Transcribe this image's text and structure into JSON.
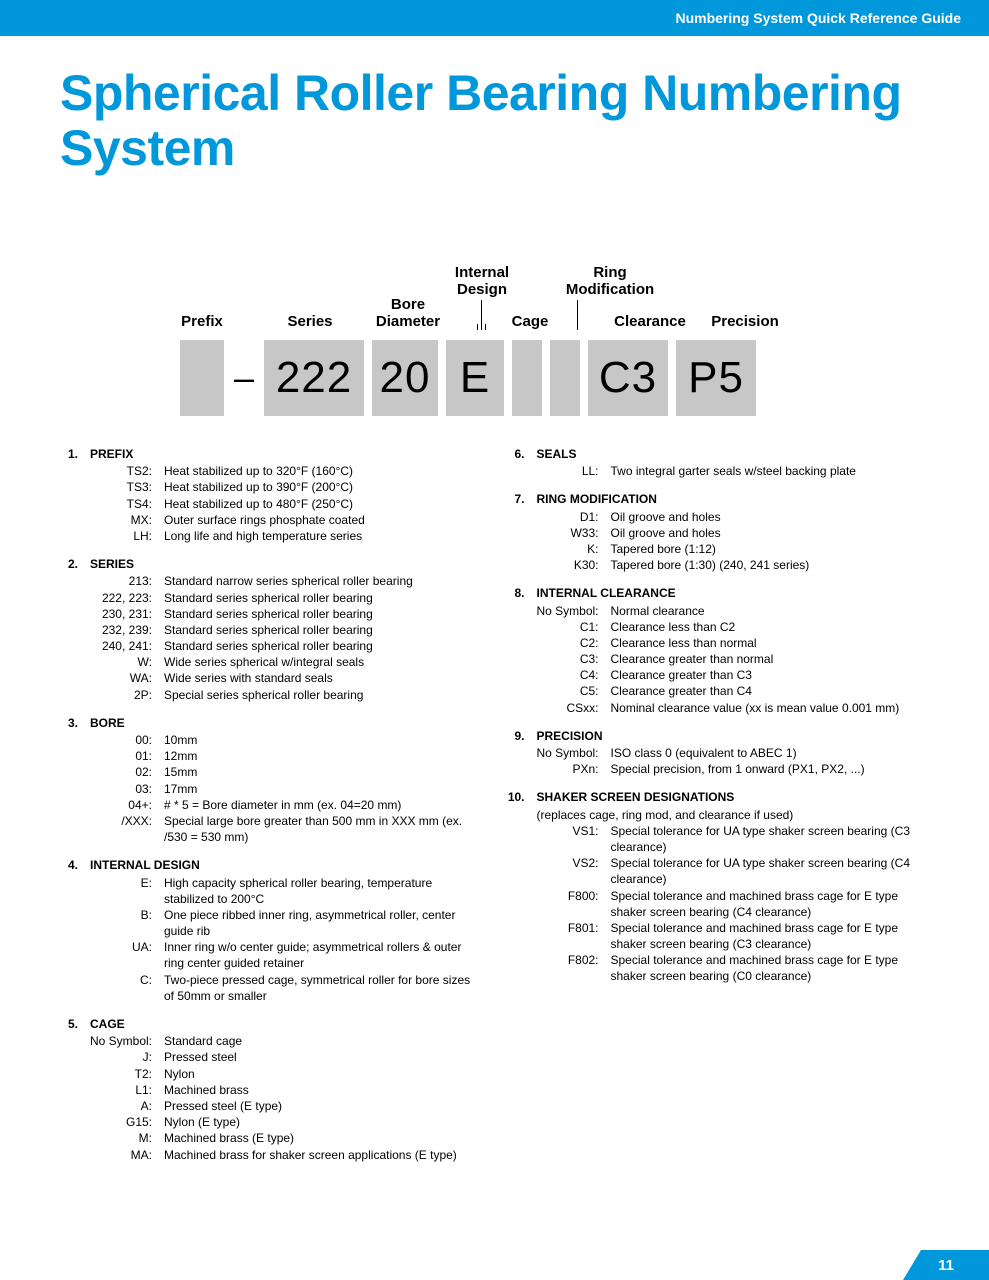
{
  "header": {
    "guide_title": "Numbering System Quick Reference Guide"
  },
  "title": "Spherical Roller Bearing Numbering System",
  "diagram": {
    "labels": {
      "prefix": "Prefix",
      "series": "Series",
      "bore": "Bore Diameter",
      "internal": "Internal Design",
      "cage": "Cage",
      "ringmod": "Ring Modification",
      "clearance": "Clearance",
      "precision": "Precision"
    },
    "boxes": {
      "dash": "–",
      "b222": "222",
      "b20": "20",
      "bE": "E",
      "bC3": "C3",
      "bP5": "P5"
    }
  },
  "left": [
    {
      "num": "1.",
      "title": "PREFIX",
      "items": [
        {
          "code": "TS2:",
          "desc": "Heat stabilized up to 320°F (160°C)"
        },
        {
          "code": "TS3:",
          "desc": "Heat stabilized up to 390°F (200°C)"
        },
        {
          "code": "TS4:",
          "desc": "Heat stabilized up to 480°F (250°C)"
        },
        {
          "code": "MX:",
          "desc": "Outer surface rings phosphate coated"
        },
        {
          "code": "LH:",
          "desc": "Long life and high temperature series"
        }
      ]
    },
    {
      "num": "2.",
      "title": "SERIES",
      "items": [
        {
          "code": "213:",
          "desc": "Standard narrow series spherical roller bearing"
        },
        {
          "code": "222, 223:",
          "desc": "Standard series spherical roller bearing"
        },
        {
          "code": "230, 231:",
          "desc": "Standard series spherical roller bearing"
        },
        {
          "code": "232, 239:",
          "desc": "Standard series spherical roller bearing"
        },
        {
          "code": "240, 241:",
          "desc": "Standard series spherical roller bearing"
        },
        {
          "code": "W:",
          "desc": "Wide series spherical w/integral seals"
        },
        {
          "code": "WA:",
          "desc": "Wide series with standard seals"
        },
        {
          "code": "2P:",
          "desc": "Special series spherical roller bearing"
        }
      ]
    },
    {
      "num": "3.",
      "title": "BORE",
      "items": [
        {
          "code": "00:",
          "desc": "10mm"
        },
        {
          "code": "01:",
          "desc": "12mm"
        },
        {
          "code": "02:",
          "desc": "15mm"
        },
        {
          "code": "03:",
          "desc": "17mm"
        },
        {
          "code": "04+:",
          "desc": "# * 5 = Bore diameter in mm (ex. 04=20 mm)"
        },
        {
          "code": "/XXX:",
          "desc": "Special large bore greater than 500 mm in XXX mm (ex. /530 = 530 mm)"
        }
      ]
    },
    {
      "num": "4.",
      "title": "INTERNAL DESIGN",
      "items": [
        {
          "code": "E:",
          "desc": "High capacity spherical roller bearing, temperature stabilized to 200°C"
        },
        {
          "code": "B:",
          "desc": "One piece ribbed inner ring, asymmetrical roller, center guide rib"
        },
        {
          "code": "UA:",
          "desc": "Inner ring w/o center guide; asymmetrical rollers & outer ring center guided retainer"
        },
        {
          "code": "C:",
          "desc": "Two-piece pressed cage, symmetrical roller for bore sizes of 50mm or smaller"
        }
      ]
    },
    {
      "num": "5.",
      "title": "CAGE",
      "items": [
        {
          "code": "No Symbol:",
          "desc": "Standard cage"
        },
        {
          "code": "J:",
          "desc": "Pressed steel"
        },
        {
          "code": "T2:",
          "desc": "Nylon"
        },
        {
          "code": "L1:",
          "desc": "Machined brass"
        },
        {
          "code": "A:",
          "desc": "Pressed steel (E type)"
        },
        {
          "code": "G15:",
          "desc": "Nylon (E type)"
        },
        {
          "code": "M:",
          "desc": "Machined brass (E type)"
        },
        {
          "code": "MA:",
          "desc": "Machined brass for shaker screen applications (E type)"
        }
      ]
    }
  ],
  "right": [
    {
      "num": "6.",
      "title": "SEALS",
      "items": [
        {
          "code": "LL:",
          "desc": "Two integral garter seals w/steel backing plate"
        }
      ]
    },
    {
      "num": "7.",
      "title": "RING MODIFICATION",
      "items": [
        {
          "code": "D1:",
          "desc": "Oil groove and holes"
        },
        {
          "code": "W33:",
          "desc": "Oil groove and holes"
        },
        {
          "code": "K:",
          "desc": "Tapered bore (1:12)"
        },
        {
          "code": "K30:",
          "desc": "Tapered bore (1:30) (240, 241 series)"
        }
      ]
    },
    {
      "num": "8.",
      "title": "INTERNAL CLEARANCE",
      "items": [
        {
          "code": "No Symbol:",
          "desc": "Normal clearance"
        },
        {
          "code": "C1:",
          "desc": "Clearance less than C2"
        },
        {
          "code": "C2:",
          "desc": "Clearance less than normal"
        },
        {
          "code": "C3:",
          "desc": "Clearance greater than normal"
        },
        {
          "code": "C4:",
          "desc": "Clearance greater than C3"
        },
        {
          "code": "C5:",
          "desc": "Clearance greater than C4"
        },
        {
          "code": "CSxx:",
          "desc": "Nominal clearance value (xx is mean value 0.001 mm)"
        }
      ]
    },
    {
      "num": "9.",
      "title": "PRECISION",
      "items": [
        {
          "code": "No Symbol:",
          "desc": "ISO class 0 (equivalent to ABEC 1)"
        },
        {
          "code": "PXn:",
          "desc": "Special precision, from 1 onward (PX1, PX2, ...)"
        }
      ]
    },
    {
      "num": "10.",
      "title": "SHAKER SCREEN DESIGNATIONS",
      "note": "(replaces cage, ring mod, and clearance if used)",
      "items": [
        {
          "code": "VS1:",
          "desc": "Special tolerance for UA type shaker screen bearing (C3 clearance)"
        },
        {
          "code": "VS2:",
          "desc": "Special tolerance for UA type shaker screen bearing (C4 clearance)"
        },
        {
          "code": "F800:",
          "desc": "Special tolerance and machined brass cage for E type shaker screen bearing (C4 clearance)"
        },
        {
          "code": "F801:",
          "desc": "Special tolerance and machined brass cage for E type shaker screen bearing (C3 clearance)"
        },
        {
          "code": "F802:",
          "desc": "Special tolerance and machined brass cage for E type shaker screen bearing (C0 clearance)"
        }
      ]
    }
  ],
  "page_number": "11"
}
